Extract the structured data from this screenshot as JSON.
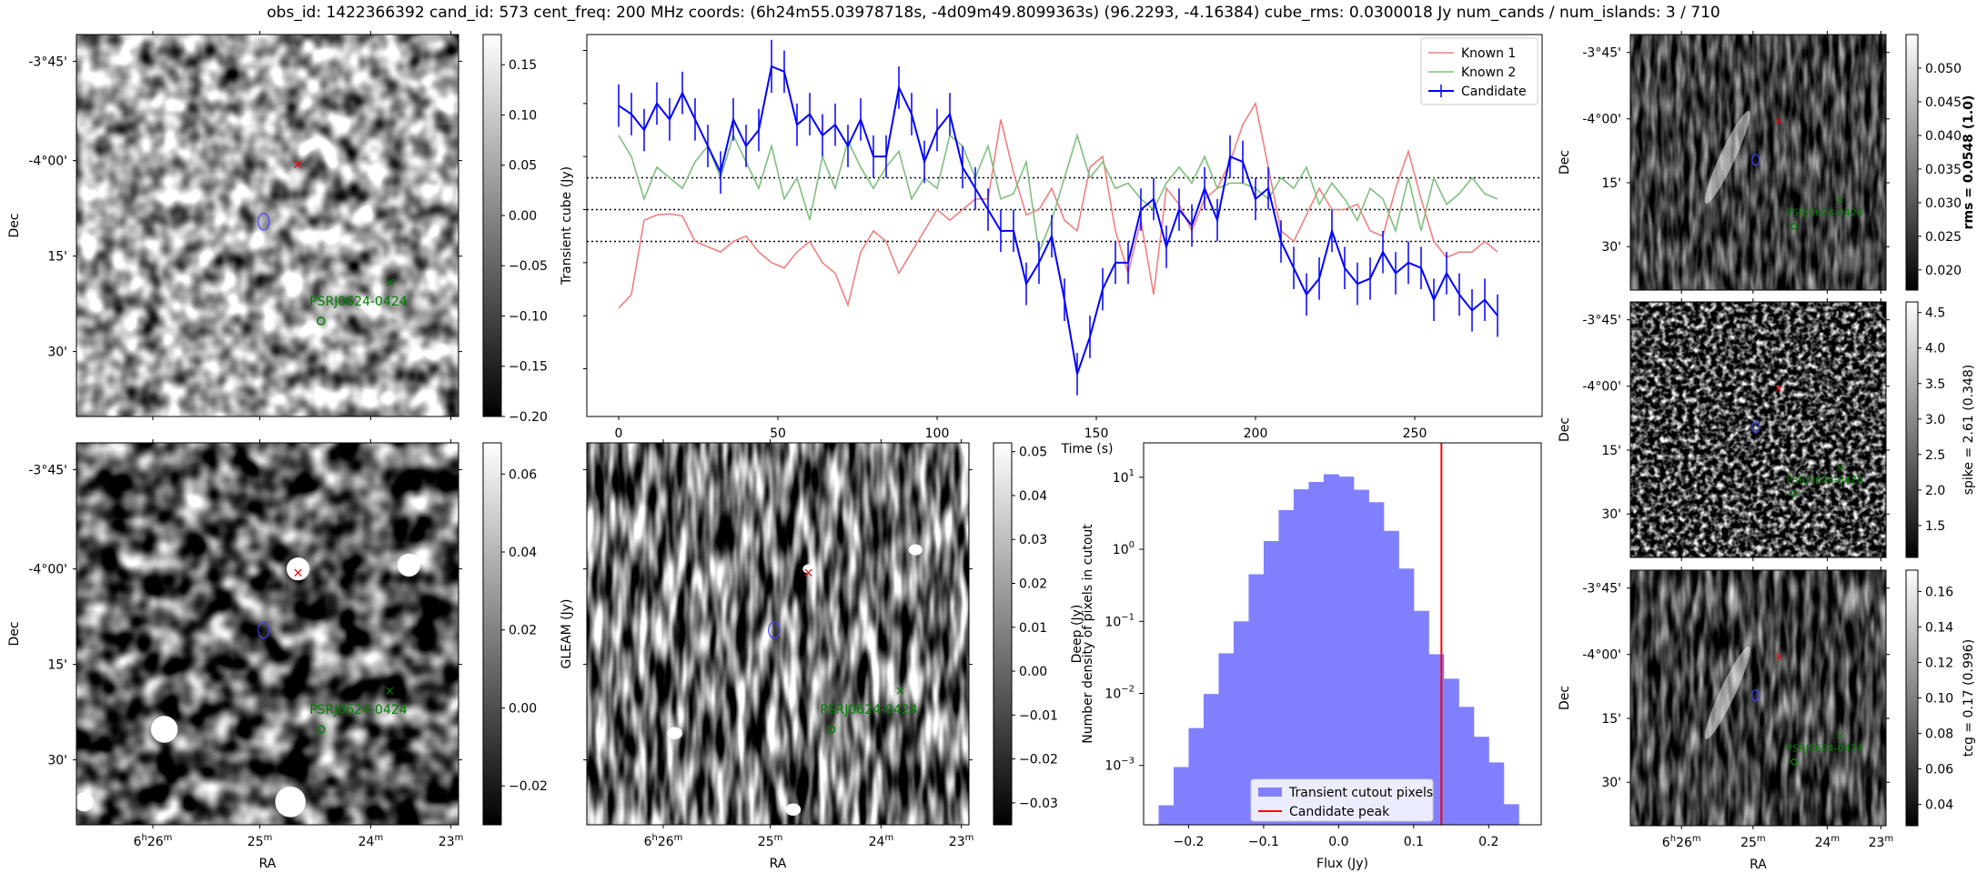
{
  "figure_title": "obs_id: 1422366392 cand_id: 573 cent_freq: 200 MHz coords: (6h24m55.03978718s, -4d09m49.8099363s) (96.2293, -4.16384) cube_rms: 0.0300018 Jy num_cands / num_islands: 3 / 710",
  "colors": {
    "known1": "#f08080",
    "known2": "#7fbf7f",
    "candidate": "#0000ff",
    "hist": "#8080ff",
    "peak": "#ff0000",
    "marker": "#ff0000",
    "source": "#008000"
  },
  "sky_axes": {
    "ra_label": "RA",
    "dec_label": "Dec",
    "ra_ticks": [
      {
        "hour": 6,
        "min": 26,
        "text": ""
      },
      {
        "text": "25m"
      },
      {
        "text": "24m"
      },
      {
        "text": "23m"
      }
    ],
    "dec_ticks": [
      "-3°45'",
      "-4°00'",
      "15'",
      "30'"
    ],
    "source_label": "PSRJ0624-0424"
  },
  "sky_images": [
    {
      "id": "transient",
      "cbar_label": "Transient cube (Jy)",
      "cbar_ticks": [
        "0.15",
        "0.10",
        "0.05",
        "0.00",
        "−0.05",
        "−0.10",
        "−0.15",
        "−0.20"
      ],
      "cbar_range": [
        -0.2,
        0.18
      ]
    },
    {
      "id": "gleam",
      "cbar_label": "GLEAM (Jy)",
      "cbar_ticks": [
        "0.06",
        "0.04",
        "0.02",
        "0.00",
        "−0.02"
      ],
      "cbar_range": [
        -0.03,
        0.068
      ]
    },
    {
      "id": "deep",
      "cbar_label": "Deep (Jy)",
      "cbar_ticks": [
        "0.05",
        "0.04",
        "0.03",
        "0.02",
        "0.01",
        "0.00",
        "−0.01",
        "−0.02",
        "−0.03"
      ],
      "cbar_range": [
        -0.035,
        0.052
      ]
    },
    {
      "id": "rms",
      "cbar_label": "rms = 0.0548 (1.0)",
      "cbar_ticks": [
        "0.050",
        "0.045",
        "0.040",
        "0.035",
        "0.030",
        "0.025",
        "0.020"
      ],
      "cbar_range": [
        0.017,
        0.055
      ]
    },
    {
      "id": "spike",
      "cbar_label": "spike = 2.61 (0.348)",
      "cbar_ticks": [
        "4.5",
        "4.0",
        "3.5",
        "3.0",
        "2.5",
        "2.0",
        "1.5"
      ],
      "cbar_range": [
        1.05,
        4.65
      ]
    },
    {
      "id": "tcg",
      "cbar_label": "tcg = 0.17 (0.996)",
      "cbar_ticks": [
        "0.16",
        "0.14",
        "0.12",
        "0.10",
        "0.08",
        "0.06",
        "0.04"
      ],
      "cbar_range": [
        0.028,
        0.172
      ]
    }
  ],
  "chart_data": [
    {
      "type": "line",
      "title": "",
      "xlabel": "Time (s)",
      "ylabel": "",
      "xlim": [
        -10,
        290
      ],
      "ylim": [
        -0.195,
        0.165
      ],
      "xticks": [
        0,
        50,
        100,
        150,
        200,
        250
      ],
      "yticks": [],
      "x": [
        0,
        4,
        8,
        12,
        16,
        20,
        24,
        28,
        32,
        36,
        40,
        44,
        48,
        52,
        56,
        60,
        64,
        68,
        72,
        76,
        80,
        84,
        88,
        92,
        96,
        100,
        104,
        108,
        112,
        116,
        120,
        124,
        128,
        132,
        136,
        140,
        144,
        148,
        152,
        156,
        160,
        164,
        168,
        172,
        176,
        180,
        184,
        188,
        192,
        196,
        200,
        204,
        208,
        212,
        216,
        220,
        224,
        228,
        232,
        236,
        240,
        244,
        248,
        252,
        256,
        260,
        264,
        268,
        272,
        276
      ],
      "hlines": [
        0.03,
        0.0,
        -0.03
      ],
      "legend": [
        "Known 1",
        "Known 2",
        "Candidate"
      ],
      "legend_position": "top-right",
      "series": [
        {
          "name": "Known 1",
          "values": [
            -0.093,
            -0.08,
            -0.01,
            -0.005,
            -0.004,
            -0.006,
            -0.03,
            -0.035,
            -0.04,
            -0.03,
            -0.025,
            -0.04,
            -0.05,
            -0.055,
            -0.04,
            -0.03,
            -0.05,
            -0.06,
            -0.09,
            -0.04,
            -0.02,
            -0.03,
            -0.06,
            -0.04,
            -0.02,
            0.0,
            -0.01,
            0.0,
            0.01,
            0.01,
            0.085,
            0.035,
            -0.005,
            0.0,
            0.02,
            -0.01,
            -0.02,
            0.04,
            0.05,
            -0.02,
            -0.06,
            -0.01,
            -0.08,
            0.02,
            0.005,
            -0.02,
            0.01,
            0.02,
            0.045,
            0.08,
            0.1,
            0.04,
            -0.02,
            -0.03,
            -0.005,
            0.02,
            0.0,
            0.0,
            0.005,
            -0.02,
            -0.025,
            0.02,
            0.055,
            0.01,
            -0.03,
            -0.045,
            -0.04,
            -0.04,
            -0.03,
            -0.04
          ]
        },
        {
          "name": "Known 2",
          "values": [
            0.07,
            0.05,
            0.01,
            0.04,
            0.03,
            0.02,
            0.045,
            0.06,
            0.03,
            0.07,
            0.045,
            0.02,
            0.06,
            0.01,
            0.03,
            -0.01,
            0.05,
            0.02,
            0.065,
            0.04,
            0.02,
            0.04,
            0.055,
            0.01,
            0.03,
            0.02,
            0.07,
            0.06,
            0.03,
            0.06,
            0.01,
            0.015,
            0.045,
            -0.04,
            -0.01,
            0.03,
            0.07,
            0.03,
            0.045,
            0.02,
            0.025,
            0.01,
            0.0,
            0.025,
            0.04,
            0.025,
            0.05,
            0.02,
            0.025,
            0.025,
            0.02,
            0.01,
            0.03,
            0.02,
            0.04,
            0.005,
            0.025,
            0.01,
            -0.01,
            0.02,
            0.01,
            -0.02,
            0.03,
            -0.02,
            0.03,
            0.005,
            0.015,
            0.03,
            0.015,
            0.01
          ]
        },
        {
          "name": "Candidate",
          "values": [
            0.098,
            0.09,
            0.075,
            0.1,
            0.085,
            0.11,
            0.085,
            0.06,
            0.035,
            0.085,
            0.06,
            0.075,
            0.135,
            0.13,
            0.08,
            0.09,
            0.07,
            0.08,
            0.06,
            0.085,
            0.05,
            0.05,
            0.115,
            0.09,
            0.045,
            0.075,
            0.09,
            0.04,
            0.02,
            0.0,
            -0.02,
            -0.02,
            -0.07,
            -0.05,
            -0.025,
            -0.085,
            -0.155,
            -0.12,
            -0.075,
            -0.05,
            -0.05,
            0.0,
            0.01,
            -0.035,
            0.0,
            -0.015,
            0.02,
            -0.01,
            0.05,
            0.045,
            0.01,
            0.02,
            -0.03,
            -0.055,
            -0.08,
            -0.065,
            -0.02,
            -0.055,
            -0.07,
            -0.065,
            -0.04,
            -0.06,
            -0.05,
            -0.055,
            -0.085,
            -0.06,
            -0.08,
            -0.095,
            -0.085,
            -0.1
          ]
        },
        {
          "name": "Candidate error",
          "values": [
            0.02,
            0.02,
            0.02,
            0.02,
            0.02,
            0.02,
            0.02,
            0.02,
            0.02,
            0.02,
            0.02,
            0.02,
            0.025,
            0.02,
            0.02,
            0.02,
            0.02,
            0.02,
            0.02,
            0.02,
            0.02,
            0.02,
            0.02,
            0.02,
            0.02,
            0.02,
            0.02,
            0.02,
            0.02,
            0.02,
            0.02,
            0.02,
            0.02,
            0.02,
            0.02,
            0.02,
            0.02,
            0.02,
            0.02,
            0.02,
            0.02,
            0.02,
            0.02,
            0.02,
            0.02,
            0.02,
            0.02,
            0.02,
            0.02,
            0.02,
            0.02,
            0.02,
            0.02,
            0.02,
            0.02,
            0.02,
            0.02,
            0.02,
            0.02,
            0.02,
            0.02,
            0.02,
            0.02,
            0.02,
            0.02,
            0.02,
            0.02,
            0.02,
            0.02,
            0.02
          ]
        }
      ]
    },
    {
      "type": "bar",
      "title": "",
      "xlabel": "Flux (Jy)",
      "ylabel": "Number density of pixels in cutout",
      "yscale": "log",
      "xlim": [
        -0.26,
        0.27
      ],
      "ylim": [
        0.00015,
        30
      ],
      "xticks": [
        "−0.2",
        "−0.1",
        "0.0",
        "0.1",
        "0.2"
      ],
      "ytick_exponents": [
        -3,
        -2,
        -1,
        0,
        1
      ],
      "bin_width": 0.02,
      "bin_left_edges": [
        -0.24,
        -0.22,
        -0.2,
        -0.18,
        -0.16,
        -0.14,
        -0.12,
        -0.1,
        -0.08,
        -0.06,
        -0.04,
        -0.02,
        0.0,
        0.02,
        0.04,
        0.06,
        0.08,
        0.1,
        0.12,
        0.14,
        0.16,
        0.18,
        0.2,
        0.22
      ],
      "values": [
        0.00028,
        0.00095,
        0.0033,
        0.0098,
        0.036,
        0.1,
        0.45,
        1.3,
        3.5,
        6.8,
        8.6,
        11.0,
        10.2,
        6.7,
        4.5,
        1.8,
        0.54,
        0.14,
        0.035,
        0.016,
        0.0065,
        0.0025,
        0.0011,
        0.00029
      ],
      "vline": 0.137,
      "legend": [
        "Transient cutout pixels",
        "Candidate peak"
      ],
      "legend_position": "bottom-center"
    }
  ]
}
